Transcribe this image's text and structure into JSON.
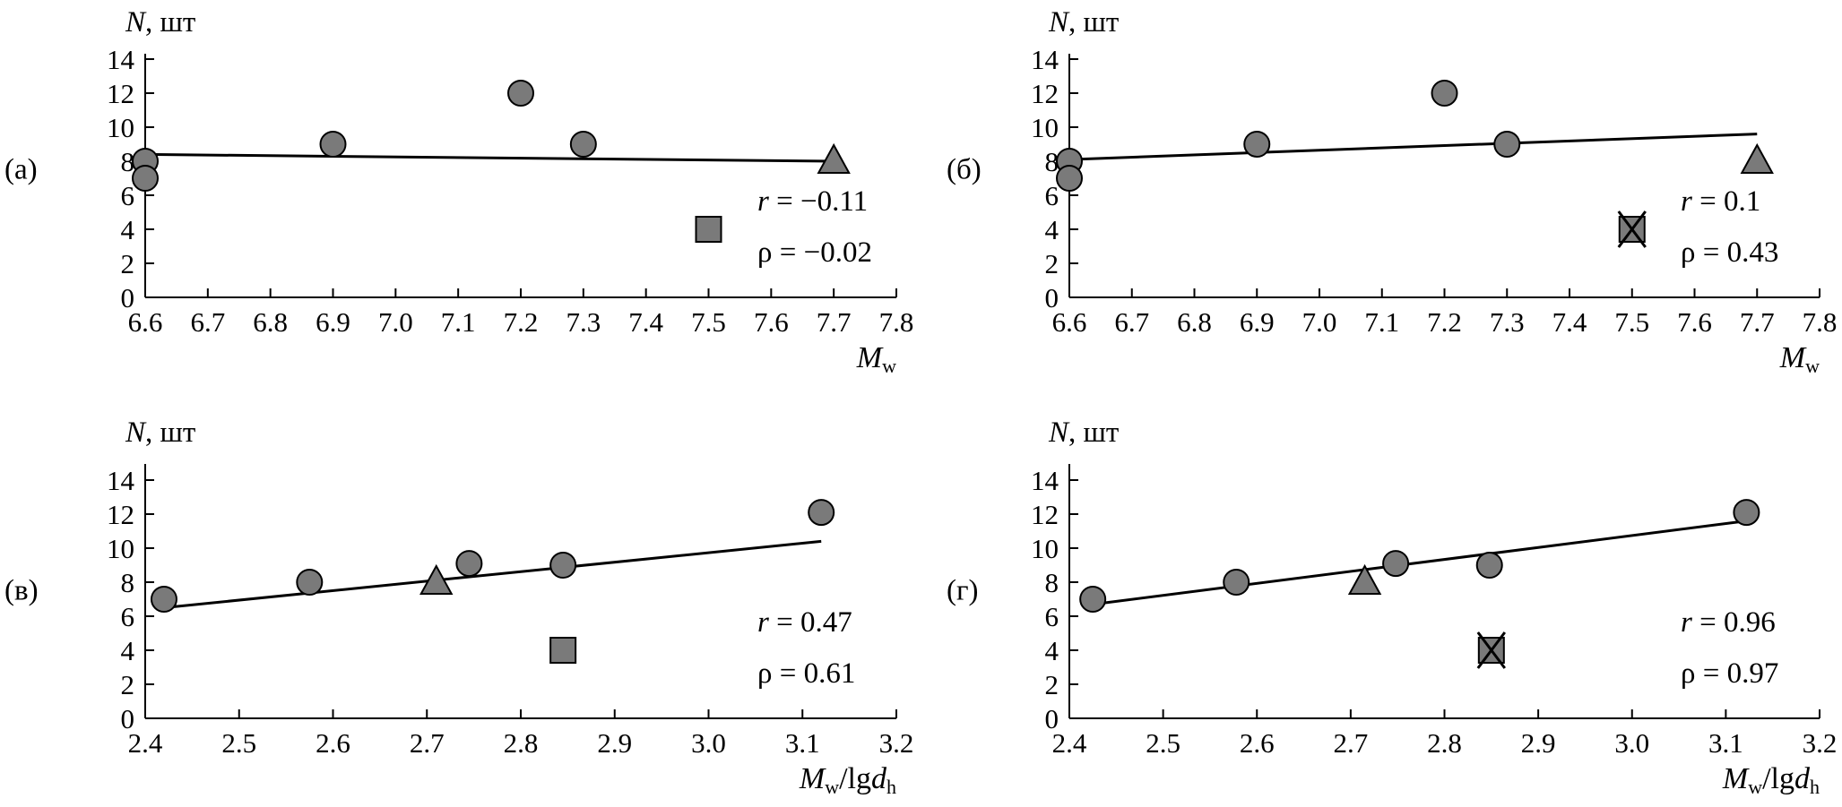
{
  "chart_data": [
    {
      "panel_label": "(а)",
      "type": "scatter",
      "ylabel": {
        "var": "N",
        "unit": ", шт"
      },
      "xlabel": {
        "main": "M",
        "sub": "w",
        "tail": "",
        "tail_main": "",
        "tail_sub": ""
      },
      "xlim": [
        6.6,
        7.8
      ],
      "ylim": [
        0,
        14
      ],
      "xticks": [
        "6.6",
        "6.7",
        "6.8",
        "6.9",
        "7.0",
        "7.1",
        "7.2",
        "7.3",
        "7.4",
        "7.5",
        "7.6",
        "7.7",
        "7.8"
      ],
      "yticks": [
        "0",
        "2",
        "4",
        "6",
        "8",
        "10",
        "12",
        "14"
      ],
      "circles": [
        [
          6.6,
          8
        ],
        [
          6.6,
          7
        ],
        [
          6.9,
          9
        ],
        [
          7.2,
          12
        ],
        [
          7.3,
          9
        ]
      ],
      "triangles": [
        [
          7.7,
          8
        ]
      ],
      "squares": [
        [
          7.5,
          4
        ]
      ],
      "crossed_squares": [],
      "trend": [
        [
          6.6,
          8.4
        ],
        [
          7.7,
          8.0
        ]
      ],
      "stats": {
        "r_var": "r",
        "r_text": " = −0.11",
        "rho_text": "ρ = −0.02"
      }
    },
    {
      "panel_label": "(б)",
      "type": "scatter",
      "ylabel": {
        "var": "N",
        "unit": ", шт"
      },
      "xlabel": {
        "main": "M",
        "sub": "w",
        "tail": "",
        "tail_main": "",
        "tail_sub": ""
      },
      "xlim": [
        6.6,
        7.8
      ],
      "ylim": [
        0,
        14
      ],
      "xticks": [
        "6.6",
        "6.7",
        "6.8",
        "6.9",
        "7.0",
        "7.1",
        "7.2",
        "7.3",
        "7.4",
        "7.5",
        "7.6",
        "7.7",
        "7.8"
      ],
      "yticks": [
        "0",
        "2",
        "4",
        "6",
        "8",
        "10",
        "12",
        "14"
      ],
      "circles": [
        [
          6.6,
          8
        ],
        [
          6.6,
          7
        ],
        [
          6.9,
          9
        ],
        [
          7.2,
          12
        ],
        [
          7.3,
          9
        ]
      ],
      "triangles": [
        [
          7.7,
          8
        ]
      ],
      "squares": [],
      "crossed_squares": [
        [
          7.5,
          4
        ]
      ],
      "trend": [
        [
          6.6,
          8.1
        ],
        [
          7.7,
          9.6
        ]
      ],
      "stats": {
        "r_var": "r",
        "r_text": " = 0.1",
        "rho_text": "ρ = 0.43"
      }
    },
    {
      "panel_label": "(в)",
      "type": "scatter",
      "ylabel": {
        "var": "N",
        "unit": ", шт"
      },
      "xlabel": {
        "main": "M",
        "sub": "w",
        "tail": "/lg",
        "tail_main": "d",
        "tail_sub": "h"
      },
      "xlim": [
        2.4,
        3.2
      ],
      "ylim": [
        0,
        14
      ],
      "xticks": [
        "2.4",
        "2.5",
        "2.6",
        "2.7",
        "2.8",
        "2.9",
        "3.0",
        "3.1",
        "3.2"
      ],
      "yticks": [
        "0",
        "2",
        "4",
        "6",
        "8",
        "10",
        "12",
        "14"
      ],
      "circles": [
        [
          2.42,
          7
        ],
        [
          2.575,
          8
        ],
        [
          2.745,
          9.1
        ],
        [
          2.845,
          9
        ],
        [
          3.12,
          12.1
        ]
      ],
      "triangles": [
        [
          2.71,
          8
        ]
      ],
      "squares": [
        [
          2.845,
          4
        ]
      ],
      "crossed_squares": [],
      "trend": [
        [
          2.42,
          6.5
        ],
        [
          3.12,
          10.4
        ]
      ],
      "stats": {
        "r_var": "r",
        "r_text": " = 0.47",
        "rho_text": "ρ = 0.61"
      }
    },
    {
      "panel_label": "(г)",
      "type": "scatter",
      "ylabel": {
        "var": "N",
        "unit": ", шт"
      },
      "xlabel": {
        "main": "M",
        "sub": "w",
        "tail": "/lg",
        "tail_main": "d",
        "tail_sub": "h"
      },
      "xlim": [
        2.4,
        3.2
      ],
      "ylim": [
        0,
        14
      ],
      "xticks": [
        "2.4",
        "2.5",
        "2.6",
        "2.7",
        "2.8",
        "2.9",
        "3.0",
        "3.1",
        "3.2"
      ],
      "yticks": [
        "0",
        "2",
        "4",
        "6",
        "8",
        "10",
        "12",
        "14"
      ],
      "circles": [
        [
          2.425,
          7
        ],
        [
          2.578,
          8
        ],
        [
          2.748,
          9.1
        ],
        [
          2.848,
          9
        ],
        [
          3.122,
          12.1
        ]
      ],
      "triangles": [
        [
          2.715,
          8
        ]
      ],
      "squares": [],
      "crossed_squares": [
        [
          2.85,
          4
        ]
      ],
      "trend": [
        [
          2.425,
          6.7
        ],
        [
          3.122,
          11.6
        ]
      ],
      "stats": {
        "r_var": "r",
        "r_text": " = 0.96",
        "rho_text": "ρ = 0.97"
      }
    }
  ],
  "colors": {
    "marker_fill": "#7a7a7a",
    "stroke": "#000000",
    "background": "#ffffff"
  }
}
